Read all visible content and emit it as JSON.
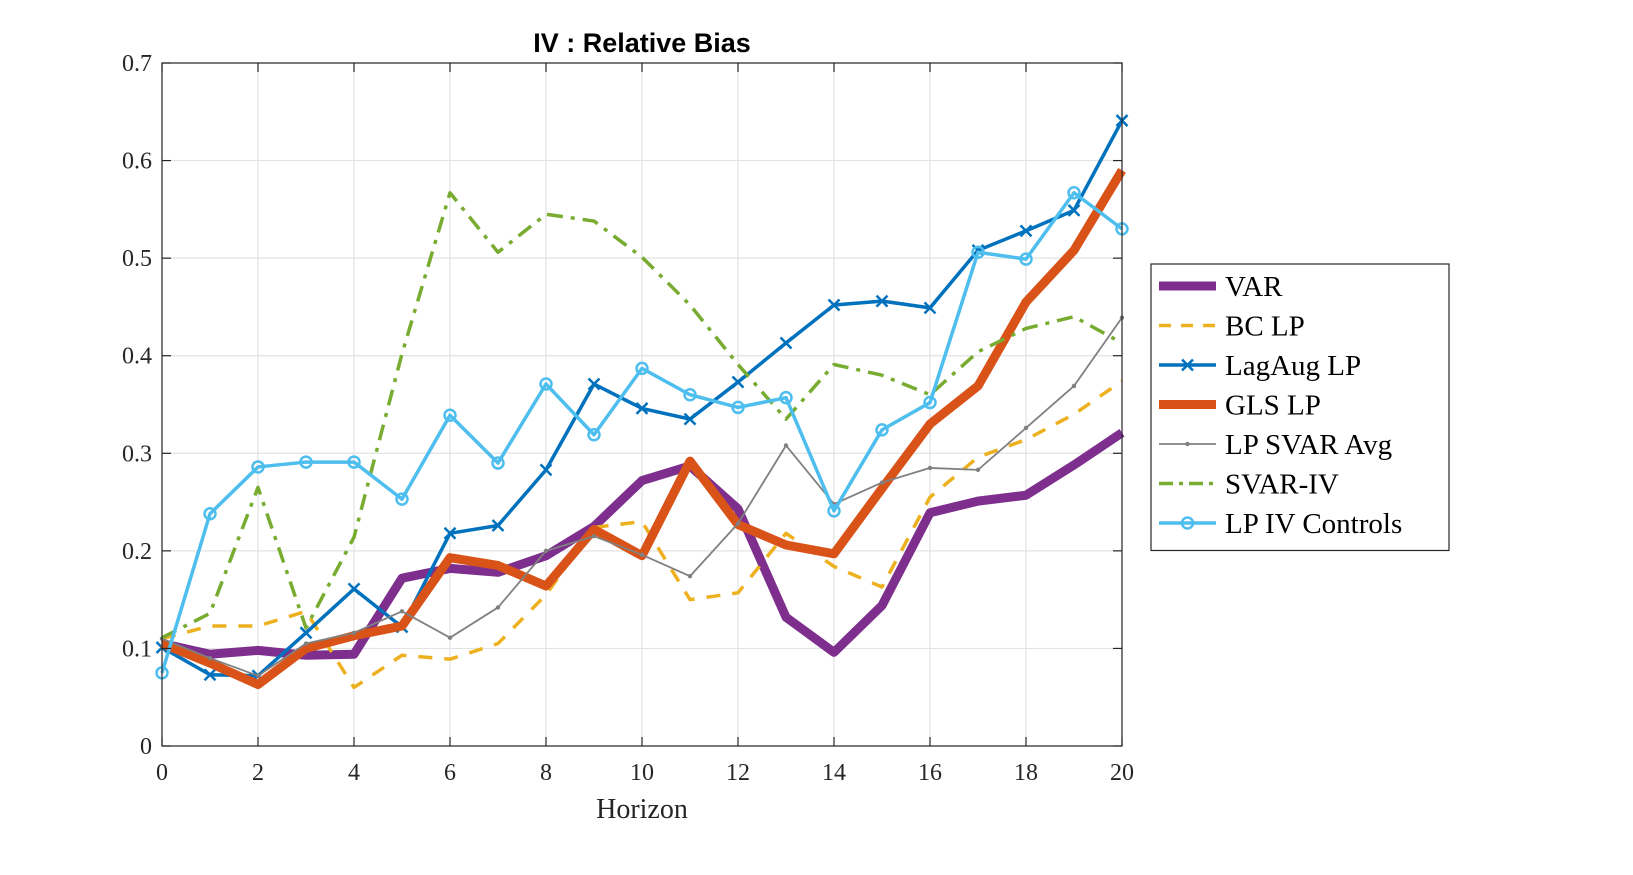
{
  "chart_data": {
    "type": "line",
    "title": "IV : Relative Bias",
    "xlabel": "Horizon",
    "ylabel": "",
    "xlim": [
      0,
      20
    ],
    "ylim": [
      0,
      0.7
    ],
    "xticks": [
      "0",
      "2",
      "4",
      "6",
      "8",
      "10",
      "12",
      "14",
      "16",
      "18",
      "20"
    ],
    "yticks": [
      "0",
      "0.1",
      "0.2",
      "0.3",
      "0.4",
      "0.5",
      "0.6",
      "0.7"
    ],
    "grid": true,
    "legend_position": "right",
    "x": [
      0,
      1,
      2,
      3,
      4,
      5,
      6,
      7,
      8,
      9,
      10,
      11,
      12,
      13,
      14,
      15,
      16,
      17,
      18,
      19,
      20
    ],
    "series": [
      {
        "name": "VAR",
        "color": "#7E2F8E",
        "style": "solid-thick",
        "marker": "none",
        "values": [
          0.105,
          0.094,
          0.098,
          0.093,
          0.094,
          0.172,
          0.182,
          0.178,
          0.195,
          0.225,
          0.272,
          0.287,
          0.243,
          0.132,
          0.096,
          0.144,
          0.239,
          0.251,
          0.257,
          0.288,
          0.321
        ]
      },
      {
        "name": "BC LP",
        "color": "#EDB120",
        "style": "dashed",
        "marker": "none",
        "values": [
          0.11,
          0.123,
          0.123,
          0.138,
          0.06,
          0.093,
          0.089,
          0.105,
          0.155,
          0.224,
          0.23,
          0.15,
          0.157,
          0.218,
          0.184,
          0.163,
          0.255,
          0.296,
          0.314,
          0.34,
          0.374
        ]
      },
      {
        "name": "LagAug LP",
        "color": "#0072BD",
        "style": "solid",
        "marker": "x",
        "values": [
          0.101,
          0.073,
          0.072,
          0.116,
          0.161,
          0.122,
          0.218,
          0.226,
          0.283,
          0.371,
          0.346,
          0.335,
          0.373,
          0.413,
          0.452,
          0.456,
          0.449,
          0.508,
          0.528,
          0.549,
          0.641
        ]
      },
      {
        "name": "GLS LP",
        "color": "#D95319",
        "style": "solid-thick",
        "marker": "none",
        "values": [
          0.105,
          0.085,
          0.063,
          0.1,
          0.113,
          0.123,
          0.193,
          0.185,
          0.164,
          0.222,
          0.195,
          0.292,
          0.227,
          0.206,
          0.197,
          0.264,
          0.33,
          0.369,
          0.455,
          0.508,
          0.59
        ]
      },
      {
        "name": "LP SVAR Avg",
        "color": "#808080",
        "style": "solid-thin",
        "marker": "dot",
        "values": [
          0.11,
          0.09,
          0.072,
          0.105,
          0.116,
          0.138,
          0.111,
          0.142,
          0.2,
          0.215,
          0.196,
          0.174,
          0.228,
          0.308,
          0.248,
          0.27,
          0.285,
          0.283,
          0.326,
          0.369,
          0.439
        ]
      },
      {
        "name": "SVAR-IV",
        "color": "#77AC30",
        "style": "dashdot",
        "marker": "none",
        "values": [
          0.111,
          0.136,
          0.265,
          0.121,
          0.214,
          0.402,
          0.567,
          0.506,
          0.545,
          0.538,
          0.501,
          0.452,
          0.391,
          0.335,
          0.391,
          0.38,
          0.36,
          0.404,
          0.428,
          0.44,
          0.413
        ]
      },
      {
        "name": "LP IV Controls",
        "color": "#4DBEEE",
        "style": "solid",
        "marker": "circle",
        "values": [
          0.075,
          0.238,
          0.286,
          0.291,
          0.291,
          0.253,
          0.339,
          0.29,
          0.371,
          0.319,
          0.387,
          0.36,
          0.347,
          0.357,
          0.241,
          0.324,
          0.352,
          0.506,
          0.499,
          0.567,
          0.53
        ]
      }
    ]
  }
}
